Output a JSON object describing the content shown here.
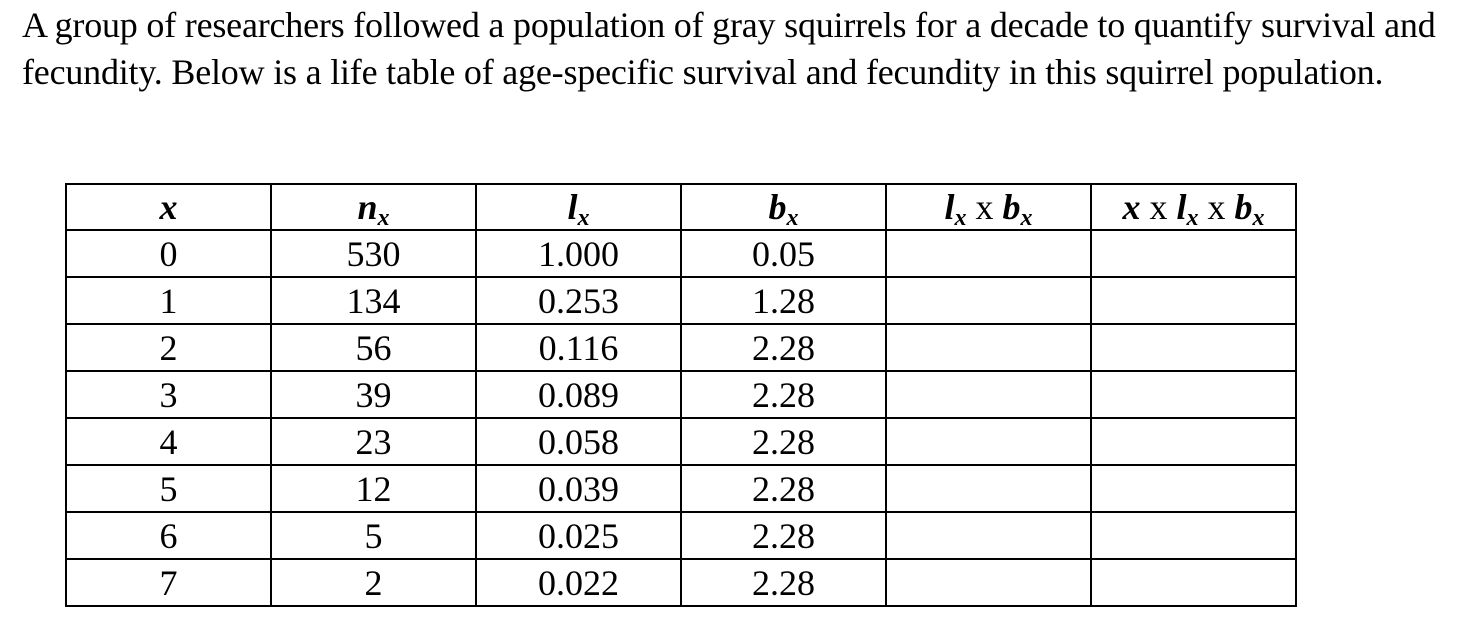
{
  "intro": "A group of researchers followed a population of gray squirrels for a decade to quantify survival and fecundity. Below is a life table of age-specific survival and fecundity in this squirrel population.",
  "table": {
    "headers": {
      "x": "x",
      "nx": {
        "base": "n",
        "sub": "x"
      },
      "lx": {
        "base": "l",
        "sub": "x"
      },
      "bx": {
        "base": "b",
        "sub": "x"
      },
      "lxbx": {
        "l": "l",
        "l_sub": "x",
        "op": " x ",
        "b": "b",
        "b_sub": "x"
      },
      "xlxbx": {
        "x": "x",
        "op1": " x ",
        "l": "l",
        "l_sub": "x",
        "op2": " x ",
        "b": "b",
        "b_sub": "x"
      }
    },
    "rows": [
      {
        "x": "0",
        "nx": "530",
        "lx": "1.000",
        "bx": "0.05",
        "lxbx": "",
        "xlxbx": ""
      },
      {
        "x": "1",
        "nx": "134",
        "lx": "0.253",
        "bx": "1.28",
        "lxbx": "",
        "xlxbx": ""
      },
      {
        "x": "2",
        "nx": "56",
        "lx": "0.116",
        "bx": "2.28",
        "lxbx": "",
        "xlxbx": ""
      },
      {
        "x": "3",
        "nx": "39",
        "lx": "0.089",
        "bx": "2.28",
        "lxbx": "",
        "xlxbx": ""
      },
      {
        "x": "4",
        "nx": "23",
        "lx": "0.058",
        "bx": "2.28",
        "lxbx": "",
        "xlxbx": ""
      },
      {
        "x": "5",
        "nx": "12",
        "lx": "0.039",
        "bx": "2.28",
        "lxbx": "",
        "xlxbx": ""
      },
      {
        "x": "6",
        "nx": "5",
        "lx": "0.025",
        "bx": "2.28",
        "lxbx": "",
        "xlxbx": ""
      },
      {
        "x": "7",
        "nx": "2",
        "lx": "0.022",
        "bx": "2.28",
        "lxbx": "",
        "xlxbx": ""
      }
    ]
  }
}
